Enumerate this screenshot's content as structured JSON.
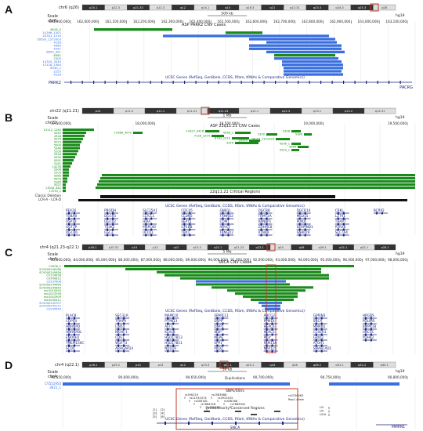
{
  "panels": [
    {
      "letter": "A",
      "chrom_label": "chr6 (q26)",
      "ideo_bands": [
        "p25.1",
        "p22.3",
        "p21.33",
        "p12.3",
        "q12",
        "q14.1",
        "q15",
        "q16.3",
        "q21",
        "q22.31",
        "q23.3",
        "q24.3",
        "q25.3",
        "q26"
      ],
      "scale_label": "Scale",
      "chr_label": "chr6:",
      "scale_text": "500 kb",
      "assembly": "hg19",
      "positions": [
        "161,900,000",
        "162,000,000",
        "162,100,000",
        "162,200,000",
        "162,300,000",
        "162,400,000",
        "162,500,000",
        "162,600,000",
        "162,700,000",
        "162,800,000",
        "162,900,000",
        "163,000,000",
        "163,100,000"
      ],
      "section_title": "ASP PARK2 CNV Cases",
      "row_labels": [
        "4616_0",
        "14166_1501",
        "20301_1510",
        "26593_1573303",
        "4156",
        "4060",
        "4341",
        "8654_001",
        "6361",
        "2305",
        "14325_3030",
        "13118_1364",
        "5040_1",
        "2255",
        "4226"
      ],
      "genes_title": "UCSC Genes (RefSeq, GenBank, CCDS, Rfam, tRNAs & Comparative Genomics)",
      "gene_left": "PARK2",
      "gene_right": "PACRG"
    },
    {
      "letter": "B",
      "chrom_label": "chr22 (q11.21)",
      "ideo_bands": [
        "p13",
        "p11.2",
        "q11.1",
        "q11.21",
        "q11.23",
        "q12.1",
        "q12.3",
        "q13.1",
        "q13.2",
        "q13.31"
      ],
      "scale_label": "Scale",
      "chr_label": "chr22:",
      "scale_text": "1 Mb",
      "assembly": "hg19",
      "positions": [
        "17,500,000",
        "18,000,000",
        "18,500,000",
        "19,000,000",
        "19,500,000"
      ],
      "section_title": "ASP 22q11.21 CNV Cases",
      "row_labels": [
        "13112_1285",
        "4345",
        "4328",
        "4229",
        "5019",
        "5000",
        "5348",
        "5100",
        "5316",
        "5059",
        "5092",
        "5181",
        "14235",
        "5306",
        "5103",
        "5089",
        "5003",
        "5183",
        "5021",
        "13018_842",
        "17010_1"
      ],
      "inline_labels": [
        "14388_4070",
        "14327_4416",
        "4268_1",
        "5390",
        "5398",
        "5386",
        "7128_1254",
        "8763_2319",
        "20059",
        "3346",
        "26053_1321033",
        "4206_1",
        "5086",
        "5429_1"
      ],
      "critical_title": "22q11.21 Critical Regions",
      "critical_sub": "Classic Deletion",
      "cnv_note": "LCR-A - LCR-D",
      "genes_title": "UCSC Genes (RefSeq, GenBank, CCDS, Rfam, tRNAs & Comparative Genomics)",
      "gene_names": [
        "PEX26",
        "TUBA8",
        "USP18",
        "GGT3P",
        "DGCR6",
        "PRODH",
        "DGCR5",
        "DGCR2",
        "TSSK2",
        "GSC2",
        "SLC25A1",
        "CLTCL1",
        "HIRA",
        "MRPL40",
        "UFD1L",
        "CDC45",
        "CLDN5",
        "SEPT5",
        "GP1BB",
        "TBX1",
        "GNB1L",
        "TXNRD2",
        "COMT",
        "ARVCF",
        "TANGO2",
        "DGCR8",
        "TRMT2A",
        "RANBP1",
        "ZDHHC8",
        "RTN4R",
        "DGCR14",
        "MED15",
        "PI4KA",
        "SERPIND1",
        "SNAP29",
        "CRKL",
        "LZTR1",
        "THAP7",
        "P2RX6",
        "SLC7A4",
        "BCRP2"
      ]
    },
    {
      "letter": "C",
      "chrom_label": "chr4 (q21.23-q22.1)",
      "ideo_bands": [
        "p16.1",
        "p15.31",
        "p14",
        "p12",
        "q12",
        "q13.3",
        "q21.1",
        "q21.23",
        "q22.1",
        "q24",
        "q26",
        "q28.1",
        "q31.1",
        "q32.1",
        "q35.1"
      ],
      "scale_label": "Scale",
      "chr_label": "chr4:",
      "scale_text": "5 Mb",
      "assembly": "hg19",
      "positions": [
        "83,000,000",
        "84,000,000",
        "85,000,000",
        "86,000,000",
        "87,000,000",
        "88,000,000",
        "89,000,000",
        "90,000,000",
        "91,000,000",
        "92,000,000",
        "93,000,000",
        "94,000,000",
        "95,000,000",
        "96,000,000",
        "97,000,000",
        "98,000,000"
      ],
      "section_title": "SNCA CNV Cases",
      "row_labels": [
        "CV906_2",
        "SCV000246186",
        "SCV000245658",
        "CV124956",
        "CV240812",
        "CV237608",
        "SCV000244964",
        "SCV000245654",
        "nsv1010450",
        "nsv1023298",
        "nsv1042909",
        "nsv1030411",
        "SCV000245707",
        "SCV000245171",
        "CV235054"
      ],
      "genes_title": "UCSC Genes (RefSeq, GenBank, CCDS, Rfam, tRNAs & Comparative Genomics)",
      "gene_names": [
        "PLAC8",
        "COPS4",
        "HNRNPD",
        "HNRNPDL",
        "ENOPH1",
        "TMEM150C",
        "SCD5",
        "SEC31A",
        "THAP9",
        "LIN54",
        "NKX6-1",
        "CDS1",
        "WDFY3",
        "ARHGAP24",
        "MAPK10",
        "PTPN13",
        "AFF1",
        "KLHL8",
        "HSD17B13",
        "HSD17B11",
        "NUDT9",
        "SPARCL1",
        "DSPP",
        "DMP1",
        "IBSP",
        "MEPE",
        "SPP1",
        "PKD2",
        "ABCG2",
        "PPM1K",
        "HERC6",
        "HERC5",
        "PIGY",
        "FAM13A",
        "NAP1L5",
        "GPRIN3",
        "SNCA",
        "MMRN1",
        "CCSER1",
        "GRID2",
        "ATOH1",
        "SMARCAD1",
        "HPGDS",
        "PDLIM5",
        "BMPR1B",
        "UNC5C",
        "PDHA2"
      ]
    },
    {
      "letter": "D",
      "chrom_label": "chr4 (q22.1)",
      "ideo_bands": [
        "p16.1",
        "p15.2",
        "p14",
        "p13",
        "q12",
        "q13.3",
        "q21.1",
        "q22.1",
        "q24",
        "q26",
        "q28.1",
        "q31.1",
        "q32.2",
        "q35.1"
      ],
      "scale_label": "Scale",
      "chr_label": "chr4:",
      "scale_text": "50 kb",
      "assembly": "hg19",
      "positions": [
        "90,550,000",
        "90,600,000",
        "90,650,000",
        "90,700,000",
        "90,750,000",
        "90,800,000"
      ],
      "cnv_rows": [
        "CV551954",
        "3621_1"
      ],
      "dup_label": "Duplications",
      "snp_title": "SNPs/SSVs",
      "snp_labels": [
        "rs356219",
        "rs11931074",
        "rs356181",
        "rs7684318",
        "rs356165",
        "rs2583988",
        "rs3910105",
        "rs356168",
        "rs7689942"
      ],
      "snp_right": "rs3756063",
      "rep_label": "Rep1 allele",
      "conserved_title": "Evolutionarily Conserved Regions",
      "region_labels": [
        "[1]",
        "[2]",
        "[3]",
        "[4]",
        "[5]",
        "[6]"
      ],
      "right_labels": [
        "U3",
        "U4",
        "U4-II"
      ],
      "genes_title": "UCSC Genes (RefSeq, GenBank, CCDS, Rfam, tRNAs & Comparative Genomics)",
      "gene_left": "SNCA",
      "gene_right": "MMRN1"
    }
  ],
  "colors": {
    "green": "#1a8a1a",
    "blue": "#3a6fe0",
    "navy": "#1a237e",
    "highlight": "#c0392b",
    "ideo_dark": "#333333",
    "ideo_light": "#dddddd",
    "centromere": "#b03030"
  }
}
